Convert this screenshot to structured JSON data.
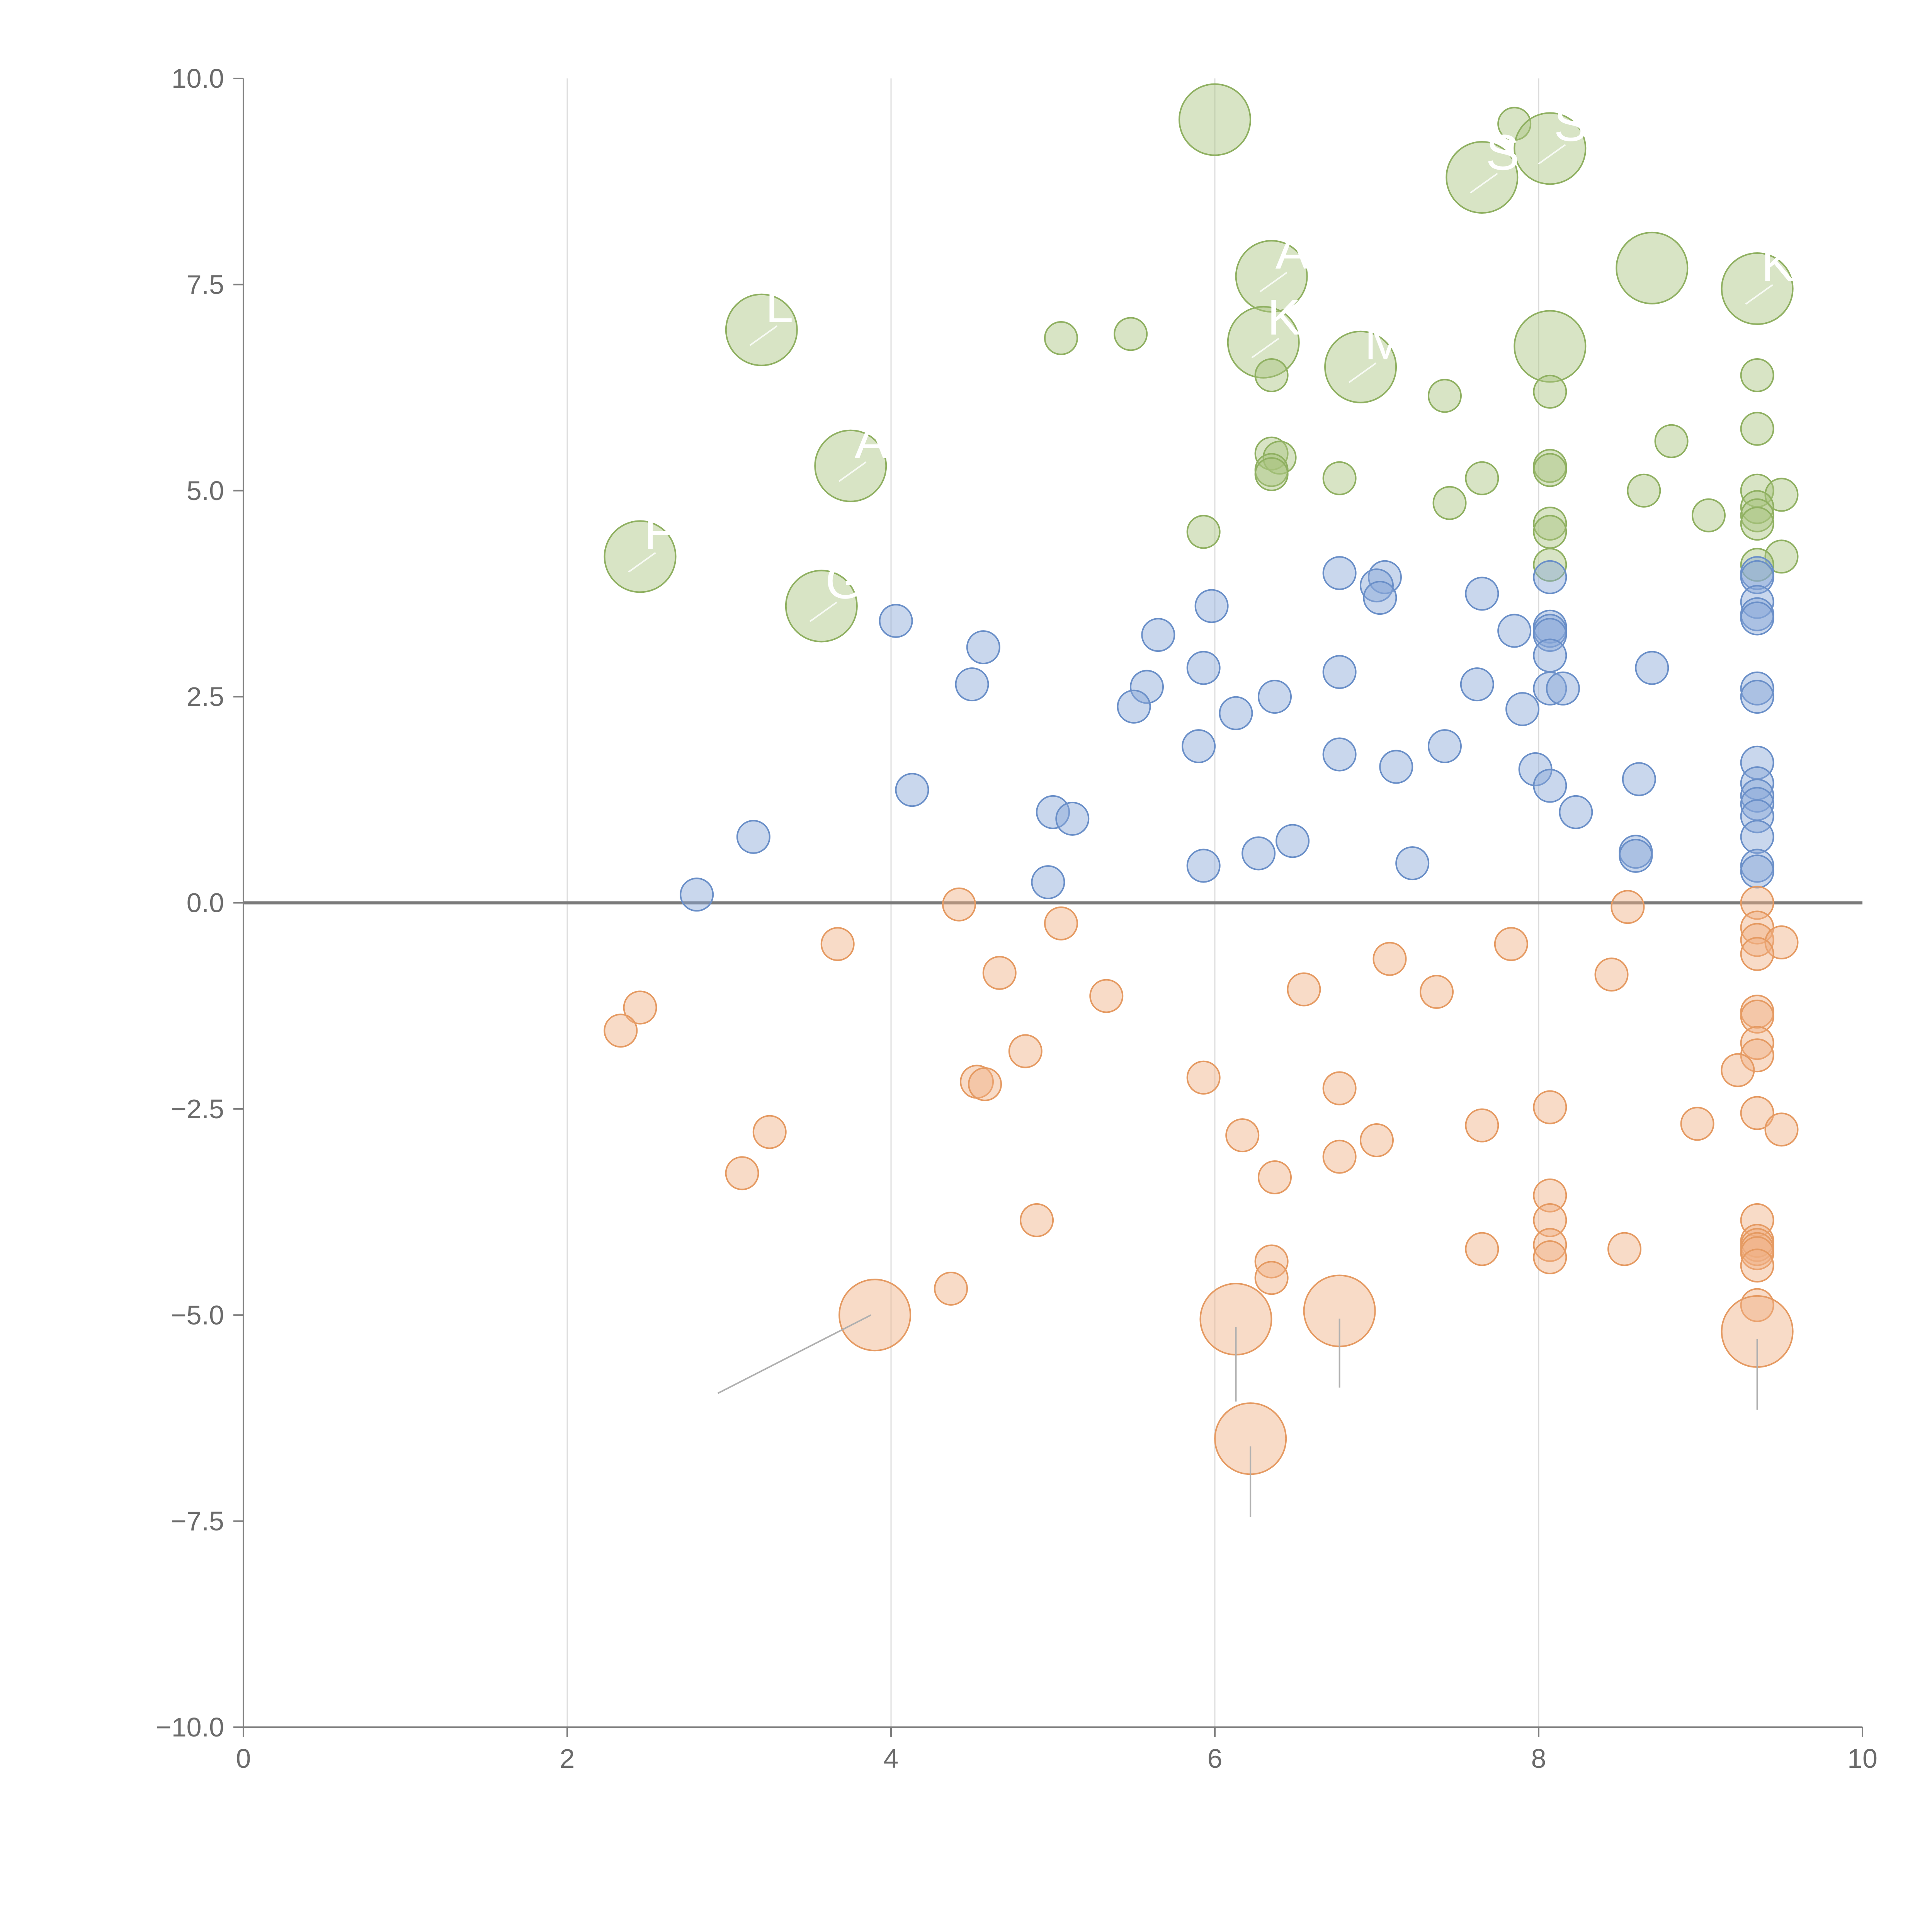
{
  "chart_data": {
    "type": "scatter",
    "title": "",
    "xlabel": "",
    "ylabel": "",
    "xlim": [
      0,
      10
    ],
    "ylim": [
      -10,
      10
    ],
    "grid": "vertical",
    "legend": "none",
    "x_ticks": [
      "0",
      "2",
      "4",
      "6",
      "8",
      "10"
    ],
    "y_ticks": [
      "10.0",
      "7.5",
      "5.0",
      "2.5",
      "0.0",
      "−2.5",
      "−5.0",
      "−7.5",
      "−10.0"
    ],
    "series": [
      {
        "color": "#a9c47f",
        "stroke": "#8fb061",
        "points": [
          {
            "x": 6.0,
            "y": 9.5,
            "size": "large"
          },
          {
            "x": 7.85,
            "y": 9.45,
            "size": "small"
          },
          {
            "x": 8.07,
            "y": 9.15,
            "size": "large",
            "label": "ST"
          },
          {
            "x": 7.65,
            "y": 8.8,
            "size": "large",
            "label": "S"
          },
          {
            "x": 8.7,
            "y": 7.7,
            "size": "large"
          },
          {
            "x": 6.35,
            "y": 7.6,
            "size": "large",
            "label": "A"
          },
          {
            "x": 9.35,
            "y": 7.45,
            "size": "large",
            "label": "K"
          },
          {
            "x": 3.2,
            "y": 6.95,
            "size": "large",
            "label": "L"
          },
          {
            "x": 5.05,
            "y": 6.85,
            "size": "small"
          },
          {
            "x": 5.48,
            "y": 6.9,
            "size": "small"
          },
          {
            "x": 6.3,
            "y": 6.8,
            "size": "large",
            "label": "K"
          },
          {
            "x": 8.07,
            "y": 6.75,
            "size": "large"
          },
          {
            "x": 6.9,
            "y": 6.5,
            "size": "large",
            "label": "M"
          },
          {
            "x": 6.35,
            "y": 6.4,
            "size": "small"
          },
          {
            "x": 9.35,
            "y": 6.4,
            "size": "small"
          },
          {
            "x": 7.42,
            "y": 6.15,
            "size": "small"
          },
          {
            "x": 8.07,
            "y": 6.2,
            "size": "small"
          },
          {
            "x": 9.35,
            "y": 5.75,
            "size": "small"
          },
          {
            "x": 8.82,
            "y": 5.6,
            "size": "small"
          },
          {
            "x": 6.35,
            "y": 5.45,
            "size": "small"
          },
          {
            "x": 6.4,
            "y": 5.4,
            "size": "small"
          },
          {
            "x": 3.75,
            "y": 5.3,
            "size": "large",
            "label": "A"
          },
          {
            "x": 8.07,
            "y": 5.3,
            "size": "small"
          },
          {
            "x": 8.07,
            "y": 5.25,
            "size": "small"
          },
          {
            "x": 6.35,
            "y": 5.25,
            "size": "small"
          },
          {
            "x": 6.35,
            "y": 5.2,
            "size": "small"
          },
          {
            "x": 6.77,
            "y": 5.15,
            "size": "small"
          },
          {
            "x": 7.65,
            "y": 5.15,
            "size": "small"
          },
          {
            "x": 8.65,
            "y": 5.0,
            "size": "small"
          },
          {
            "x": 9.35,
            "y": 5.0,
            "size": "small"
          },
          {
            "x": 9.5,
            "y": 4.95,
            "size": "small"
          },
          {
            "x": 7.45,
            "y": 4.85,
            "size": "small"
          },
          {
            "x": 9.35,
            "y": 4.8,
            "size": "small"
          },
          {
            "x": 9.35,
            "y": 4.7,
            "size": "small"
          },
          {
            "x": 9.05,
            "y": 4.7,
            "size": "small"
          },
          {
            "x": 8.07,
            "y": 4.6,
            "size": "small"
          },
          {
            "x": 9.35,
            "y": 4.6,
            "size": "small"
          },
          {
            "x": 8.07,
            "y": 4.5,
            "size": "small"
          },
          {
            "x": 5.93,
            "y": 4.5,
            "size": "small"
          },
          {
            "x": 2.45,
            "y": 4.2,
            "size": "large",
            "label": "F"
          },
          {
            "x": 9.5,
            "y": 4.2,
            "size": "small"
          },
          {
            "x": 9.35,
            "y": 4.1,
            "size": "small"
          },
          {
            "x": 8.07,
            "y": 4.1,
            "size": "small"
          },
          {
            "x": 3.57,
            "y": 3.6,
            "size": "large",
            "label": "G"
          }
        ]
      },
      {
        "color": "#87a6d6",
        "stroke": "#6a8fc8",
        "points": [
          {
            "x": 6.77,
            "y": 4.0,
            "size": "small"
          },
          {
            "x": 7.05,
            "y": 3.95,
            "size": "small"
          },
          {
            "x": 8.07,
            "y": 3.95,
            "size": "small"
          },
          {
            "x": 9.35,
            "y": 4.0,
            "size": "small"
          },
          {
            "x": 9.35,
            "y": 3.95,
            "size": "small"
          },
          {
            "x": 7.0,
            "y": 3.85,
            "size": "small"
          },
          {
            "x": 7.65,
            "y": 3.75,
            "size": "small"
          },
          {
            "x": 7.02,
            "y": 3.7,
            "size": "small"
          },
          {
            "x": 9.35,
            "y": 3.65,
            "size": "small"
          },
          {
            "x": 5.98,
            "y": 3.6,
            "size": "small"
          },
          {
            "x": 4.03,
            "y": 3.42,
            "size": "small"
          },
          {
            "x": 9.35,
            "y": 3.5,
            "size": "small"
          },
          {
            "x": 9.35,
            "y": 3.45,
            "size": "small"
          },
          {
            "x": 8.07,
            "y": 3.35,
            "size": "small"
          },
          {
            "x": 7.85,
            "y": 3.3,
            "size": "small"
          },
          {
            "x": 8.07,
            "y": 3.3,
            "size": "small"
          },
          {
            "x": 8.07,
            "y": 3.25,
            "size": "small"
          },
          {
            "x": 5.65,
            "y": 3.25,
            "size": "small"
          },
          {
            "x": 4.57,
            "y": 3.1,
            "size": "small"
          },
          {
            "x": 8.07,
            "y": 3.0,
            "size": "small"
          },
          {
            "x": 5.93,
            "y": 2.85,
            "size": "small"
          },
          {
            "x": 8.7,
            "y": 2.85,
            "size": "small"
          },
          {
            "x": 6.77,
            "y": 2.8,
            "size": "small"
          },
          {
            "x": 4.5,
            "y": 2.65,
            "size": "small"
          },
          {
            "x": 7.62,
            "y": 2.65,
            "size": "small"
          },
          {
            "x": 5.58,
            "y": 2.62,
            "size": "small"
          },
          {
            "x": 8.07,
            "y": 2.6,
            "size": "small"
          },
          {
            "x": 8.15,
            "y": 2.6,
            "size": "small"
          },
          {
            "x": 9.35,
            "y": 2.6,
            "size": "small"
          },
          {
            "x": 6.37,
            "y": 2.5,
            "size": "small"
          },
          {
            "x": 9.35,
            "y": 2.5,
            "size": "small"
          },
          {
            "x": 5.5,
            "y": 2.38,
            "size": "small"
          },
          {
            "x": 7.9,
            "y": 2.35,
            "size": "small"
          },
          {
            "x": 6.13,
            "y": 2.3,
            "size": "small"
          },
          {
            "x": 5.9,
            "y": 1.9,
            "size": "small"
          },
          {
            "x": 7.42,
            "y": 1.9,
            "size": "small"
          },
          {
            "x": 6.77,
            "y": 1.8,
            "size": "small"
          },
          {
            "x": 9.35,
            "y": 1.7,
            "size": "small"
          },
          {
            "x": 7.12,
            "y": 1.65,
            "size": "small"
          },
          {
            "x": 7.98,
            "y": 1.62,
            "size": "small"
          },
          {
            "x": 8.62,
            "y": 1.5,
            "size": "small"
          },
          {
            "x": 9.35,
            "y": 1.45,
            "size": "small"
          },
          {
            "x": 8.07,
            "y": 1.42,
            "size": "small"
          },
          {
            "x": 4.13,
            "y": 1.37,
            "size": "small"
          },
          {
            "x": 9.35,
            "y": 1.3,
            "size": "small"
          },
          {
            "x": 9.35,
            "y": 1.2,
            "size": "small"
          },
          {
            "x": 8.23,
            "y": 1.1,
            "size": "small"
          },
          {
            "x": 5.0,
            "y": 1.1,
            "size": "small"
          },
          {
            "x": 9.35,
            "y": 1.05,
            "size": "small"
          },
          {
            "x": 5.12,
            "y": 1.02,
            "size": "small"
          },
          {
            "x": 3.15,
            "y": 0.8,
            "size": "small"
          },
          {
            "x": 9.35,
            "y": 0.8,
            "size": "small"
          },
          {
            "x": 6.48,
            "y": 0.75,
            "size": "small"
          },
          {
            "x": 8.6,
            "y": 0.62,
            "size": "small"
          },
          {
            "x": 6.27,
            "y": 0.6,
            "size": "small"
          },
          {
            "x": 8.6,
            "y": 0.57,
            "size": "small"
          },
          {
            "x": 7.22,
            "y": 0.48,
            "size": "small"
          },
          {
            "x": 5.93,
            "y": 0.45,
            "size": "small"
          },
          {
            "x": 9.35,
            "y": 0.45,
            "size": "small"
          },
          {
            "x": 9.35,
            "y": 0.38,
            "size": "small"
          },
          {
            "x": 4.97,
            "y": 0.25,
            "size": "small"
          },
          {
            "x": 2.8,
            "y": 0.1,
            "size": "small"
          }
        ]
      },
      {
        "color": "#f0b083",
        "stroke": "#e59a62",
        "points": [
          {
            "x": 9.35,
            "y": 0.0,
            "size": "small"
          },
          {
            "x": 4.42,
            "y": -0.02,
            "size": "small"
          },
          {
            "x": 8.55,
            "y": -0.05,
            "size": "small"
          },
          {
            "x": 5.05,
            "y": -0.25,
            "size": "small"
          },
          {
            "x": 9.35,
            "y": -0.3,
            "size": "small"
          },
          {
            "x": 9.35,
            "y": -0.45,
            "size": "small"
          },
          {
            "x": 9.5,
            "y": -0.48,
            "size": "small"
          },
          {
            "x": 3.67,
            "y": -0.5,
            "size": "small"
          },
          {
            "x": 7.83,
            "y": -0.5,
            "size": "small"
          },
          {
            "x": 9.35,
            "y": -0.62,
            "size": "small"
          },
          {
            "x": 7.08,
            "y": -0.68,
            "size": "small"
          },
          {
            "x": 4.67,
            "y": -0.85,
            "size": "small"
          },
          {
            "x": 8.45,
            "y": -0.87,
            "size": "small"
          },
          {
            "x": 6.55,
            "y": -1.05,
            "size": "small"
          },
          {
            "x": 7.37,
            "y": -1.08,
            "size": "small"
          },
          {
            "x": 5.33,
            "y": -1.13,
            "size": "small"
          },
          {
            "x": 2.45,
            "y": -1.27,
            "size": "small"
          },
          {
            "x": 9.35,
            "y": -1.32,
            "size": "small"
          },
          {
            "x": 9.35,
            "y": -1.38,
            "size": "small"
          },
          {
            "x": 2.33,
            "y": -1.55,
            "size": "small"
          },
          {
            "x": 9.35,
            "y": -1.7,
            "size": "small"
          },
          {
            "x": 4.83,
            "y": -1.8,
            "size": "small"
          },
          {
            "x": 9.35,
            "y": -1.85,
            "size": "small"
          },
          {
            "x": 9.23,
            "y": -2.03,
            "size": "small"
          },
          {
            "x": 5.93,
            "y": -2.12,
            "size": "small"
          },
          {
            "x": 4.53,
            "y": -2.17,
            "size": "small"
          },
          {
            "x": 4.58,
            "y": -2.2,
            "size": "small"
          },
          {
            "x": 6.77,
            "y": -2.25,
            "size": "small"
          },
          {
            "x": 8.07,
            "y": -2.48,
            "size": "small"
          },
          {
            "x": 9.35,
            "y": -2.55,
            "size": "small"
          },
          {
            "x": 8.98,
            "y": -2.68,
            "size": "small"
          },
          {
            "x": 7.65,
            "y": -2.7,
            "size": "small"
          },
          {
            "x": 9.5,
            "y": -2.75,
            "size": "small"
          },
          {
            "x": 3.25,
            "y": -2.78,
            "size": "small"
          },
          {
            "x": 6.17,
            "y": -2.82,
            "size": "small"
          },
          {
            "x": 7.0,
            "y": -2.88,
            "size": "small"
          },
          {
            "x": 6.77,
            "y": -3.08,
            "size": "small"
          },
          {
            "x": 3.08,
            "y": -3.28,
            "size": "small"
          },
          {
            "x": 6.37,
            "y": -3.33,
            "size": "small"
          },
          {
            "x": 8.07,
            "y": -3.55,
            "size": "small"
          },
          {
            "x": 8.07,
            "y": -3.85,
            "size": "small"
          },
          {
            "x": 4.9,
            "y": -3.85,
            "size": "small"
          },
          {
            "x": 9.35,
            "y": -3.85,
            "size": "small"
          },
          {
            "x": 9.35,
            "y": -4.1,
            "size": "small"
          },
          {
            "x": 8.07,
            "y": -4.15,
            "size": "small"
          },
          {
            "x": 9.35,
            "y": -4.15,
            "size": "small"
          },
          {
            "x": 9.35,
            "y": -4.2,
            "size": "small"
          },
          {
            "x": 7.65,
            "y": -4.2,
            "size": "small"
          },
          {
            "x": 8.53,
            "y": -4.2,
            "size": "small"
          },
          {
            "x": 9.35,
            "y": -4.25,
            "size": "small"
          },
          {
            "x": 8.07,
            "y": -4.3,
            "size": "small"
          },
          {
            "x": 6.35,
            "y": -4.35,
            "size": "small"
          },
          {
            "x": 9.35,
            "y": -4.4,
            "size": "small"
          },
          {
            "x": 6.35,
            "y": -4.55,
            "size": "small"
          },
          {
            "x": 4.37,
            "y": -4.68,
            "size": "small"
          },
          {
            "x": 9.35,
            "y": -4.88,
            "size": "small"
          },
          {
            "x": 3.9,
            "y": -5.0,
            "size": "large",
            "leader": [
              2.93,
              -5.95
            ]
          },
          {
            "x": 6.77,
            "y": -4.95,
            "size": "large",
            "leader": [
              6.77,
              -5.88
            ]
          },
          {
            "x": 6.13,
            "y": -5.05,
            "size": "large",
            "leader": [
              6.13,
              -6.05
            ]
          },
          {
            "x": 9.35,
            "y": -5.2,
            "size": "large",
            "leader": [
              9.35,
              -6.15
            ]
          },
          {
            "x": 6.22,
            "y": -6.5,
            "size": "large",
            "leader": [
              6.22,
              -7.45
            ]
          }
        ]
      }
    ]
  }
}
